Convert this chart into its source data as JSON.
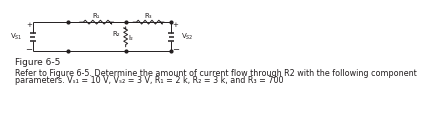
{
  "figure_label": "Figure 6-5",
  "paragraph_line1": "Refer to Figure 6-5. Determine the amount of current flow through R2 with the following component",
  "paragraph_line2": "parameters. Vₛ₁ = 10 V, Vₛ₂ = 3 V, R₁ = 2 k, R₂ = 3 k, and R₃ = 700",
  "bg_color": "#ffffff",
  "text_color": "#231f20",
  "line_color": "#231f20",
  "font_size_fig_label": 6.5,
  "font_size_text": 5.8,
  "font_size_component": 5.0
}
